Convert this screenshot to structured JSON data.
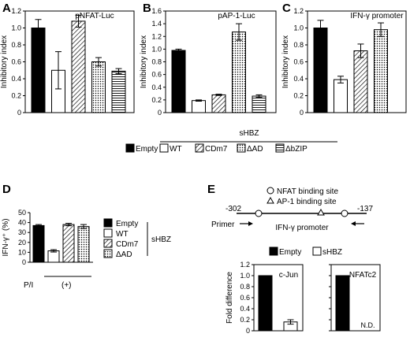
{
  "chart_data": [
    {
      "panel": "A",
      "type": "bar",
      "title": "pNFAT-Luc",
      "ylabel": "Inhibitory index",
      "ylim": [
        0,
        1.2
      ],
      "yticks": [
        "0",
        "0.2",
        "0.4",
        "0.6",
        "0.8",
        "1.0",
        "1.2"
      ],
      "values": [
        1.0,
        0.5,
        1.08,
        0.6,
        0.49
      ],
      "errors": [
        0.1,
        0.22,
        0.07,
        0.05,
        0.03
      ],
      "patterns": [
        "solid",
        "empty",
        "diag",
        "dots",
        "hlines"
      ]
    },
    {
      "panel": "B",
      "type": "bar",
      "title": "pAP-1-Luc",
      "ylabel": "Inhibitory index",
      "ylim": [
        0,
        1.6
      ],
      "yticks": [
        "0",
        "0.2",
        "0.4",
        "0.6",
        "0.8",
        "1.0",
        "1.2",
        "1.4",
        "1.6"
      ],
      "values": [
        0.98,
        0.19,
        0.28,
        1.27,
        0.26
      ],
      "errors": [
        0.02,
        0.01,
        0.01,
        0.13,
        0.02
      ],
      "patterns": [
        "solid",
        "empty",
        "diag",
        "dots",
        "hlines"
      ]
    },
    {
      "panel": "C",
      "type": "bar",
      "title": "IFN-γ promoter",
      "ylabel": "Inhibitory index",
      "ylim": [
        0,
        1.2
      ],
      "yticks": [
        "0",
        "0.2",
        "0.4",
        "0.6",
        "0.8",
        "1.0",
        "1.2"
      ],
      "values": [
        1.0,
        0.39,
        0.73,
        0.98
      ],
      "errors": [
        0.09,
        0.04,
        0.08,
        0.08
      ],
      "patterns": [
        "solid",
        "empty",
        "diag",
        "dots"
      ]
    },
    {
      "panel": "D",
      "type": "bar",
      "title": "",
      "ylabel": "IFN-γ⁺ (%)",
      "ylim": [
        0,
        50
      ],
      "yticks": [
        "0",
        "10",
        "20",
        "30",
        "40",
        "50"
      ],
      "values": [
        37,
        11.5,
        38,
        36
      ],
      "errors": [
        1,
        1.2,
        1.2,
        2
      ],
      "patterns": [
        "solid",
        "empty",
        "diag",
        "dots"
      ],
      "xlabels": [
        "P/I",
        "(+)"
      ],
      "legend": [
        "Empty",
        "WT",
        "CDm7",
        "ΔAD"
      ],
      "bracket_label": "sHBZ"
    },
    {
      "panel": "E",
      "type": "bar",
      "title": "c-Jun",
      "ylabel": "Fold difference",
      "ylim": [
        0,
        1.2
      ],
      "yticks": [
        "0",
        "0.2",
        "0.4",
        "0.6",
        "0.8",
        "1.0",
        "1.2"
      ],
      "values": [
        1.0,
        0.16
      ],
      "errors": [
        0,
        0.04
      ],
      "patterns": [
        "solid",
        "empty"
      ]
    },
    {
      "panel": "E2",
      "type": "bar",
      "title": "NFATc2",
      "ylabel": "",
      "ylim": [
        0,
        1.2
      ],
      "values": [
        1.0,
        null
      ],
      "errors": [
        0,
        0
      ],
      "patterns": [
        "solid",
        "empty"
      ],
      "annotation": "N.D."
    }
  ],
  "legend_abc": {
    "items": [
      {
        "label": "Empty",
        "pattern": "solid"
      },
      {
        "label": "WT",
        "pattern": "empty"
      },
      {
        "label": "CDm7",
        "pattern": "diag"
      },
      {
        "label": "ΔAD",
        "pattern": "dots"
      },
      {
        "label": "ΔbZIP",
        "pattern": "hlines"
      }
    ],
    "group_label": "sHBZ"
  },
  "legend_e": {
    "items": [
      {
        "label": "Empty",
        "pattern": "solid"
      },
      {
        "label": "sHBZ",
        "pattern": "empty"
      }
    ]
  },
  "diagram_e": {
    "nfat_site": "NFAT binding site",
    "ap1_site": "AP-1 binding site",
    "left_pos": "-302",
    "right_pos": "-137",
    "primer": "Primer",
    "promoter": "IFN-γ promoter"
  },
  "panel_letters": [
    "A",
    "B",
    "C",
    "D",
    "E"
  ]
}
